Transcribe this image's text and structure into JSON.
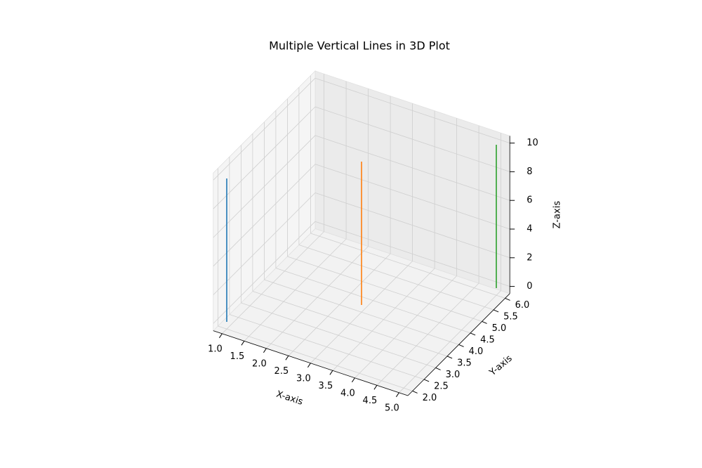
{
  "chart_data": {
    "type": "line3d",
    "title": "Multiple Vertical Lines in 3D Plot",
    "xlabel": "X-axis",
    "ylabel": "Y-axis",
    "zlabel": "Z-axis",
    "xlim": [
      0.8,
      5.2
    ],
    "ylim": [
      1.8,
      6.2
    ],
    "zlim": [
      -0.5,
      10.5
    ],
    "xticks": [
      {
        "value": 1,
        "label": "1.0"
      },
      {
        "value": 1.5,
        "label": "1.5"
      },
      {
        "value": 2,
        "label": "2.0"
      },
      {
        "value": 2.5,
        "label": "2.5"
      },
      {
        "value": 3,
        "label": "3.0"
      },
      {
        "value": 3.5,
        "label": "3.5"
      },
      {
        "value": 4,
        "label": "4.0"
      },
      {
        "value": 4.5,
        "label": "4.5"
      },
      {
        "value": 5,
        "label": "5.0"
      }
    ],
    "yticks": [
      {
        "value": 2,
        "label": "2.0"
      },
      {
        "value": 2.5,
        "label": "2.5"
      },
      {
        "value": 3,
        "label": "3.0"
      },
      {
        "value": 3.5,
        "label": "3.5"
      },
      {
        "value": 4,
        "label": "4.0"
      },
      {
        "value": 4.5,
        "label": "4.5"
      },
      {
        "value": 5,
        "label": "5.0"
      },
      {
        "value": 5.5,
        "label": "5.5"
      },
      {
        "value": 6,
        "label": "6.0"
      }
    ],
    "zticks": [
      0,
      2,
      4,
      6,
      8,
      10
    ],
    "grid": true,
    "series": [
      {
        "color": "#1f77b4",
        "x": [
          1,
          1
        ],
        "y": [
          2,
          2
        ],
        "z": [
          0,
          10
        ]
      },
      {
        "color": "#ff7f0e",
        "x": [
          3,
          3
        ],
        "y": [
          4,
          4
        ],
        "z": [
          0,
          10
        ]
      },
      {
        "color": "#2ca02c",
        "x": [
          5,
          5
        ],
        "y": [
          6,
          6
        ],
        "z": [
          0,
          10
        ]
      }
    ]
  }
}
